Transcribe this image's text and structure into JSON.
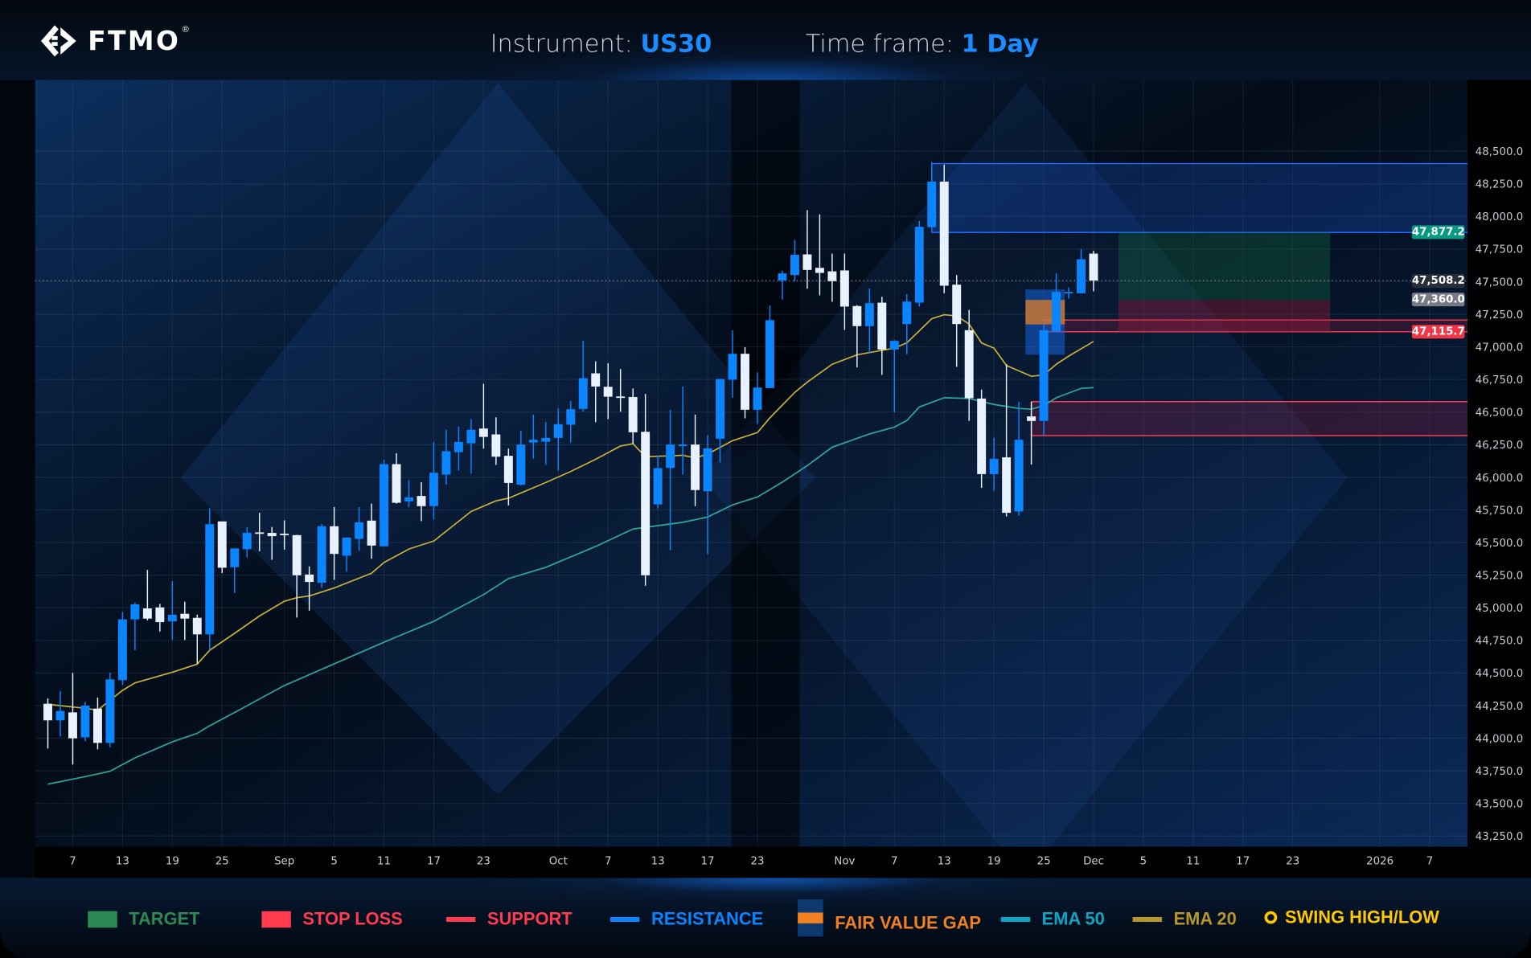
{
  "header": {
    "logo_text": "FTMO",
    "logo_mark": "®",
    "instrument_label": "Instrument:",
    "instrument_value": "US30",
    "timeframe_label": "Time frame:",
    "timeframe_value": "1 Day"
  },
  "colors": {
    "bullish": "#0a84ff",
    "bearish": "#e8f1ff",
    "ema20": "#c9b03a",
    "ema50": "#2fa89a",
    "resistance": "#1f6bff",
    "support": "#ff3b4f",
    "target": "#1f7a46",
    "stop_loss": "#ff3b4f",
    "fvg": "#f08020",
    "swing": "#ffc800"
  },
  "price_labels": {
    "target_price": "47,877.2",
    "last_price": "47,508.2",
    "entry_price": "47,360.0",
    "stop_price": "47,115.7"
  },
  "legend": [
    {
      "label": "TARGET",
      "color": "#2e8a55",
      "icon": "square"
    },
    {
      "label": "STOP LOSS",
      "color": "#ff3b4f",
      "icon": "square"
    },
    {
      "label": "SUPPORT",
      "color": "#ff3b4f",
      "icon": "line"
    },
    {
      "label": "RESISTANCE",
      "color": "#0a84ff",
      "icon": "line"
    },
    {
      "label": "FAIR VALUE GAP",
      "color": "#f08020",
      "icon": "fvg-box"
    },
    {
      "label": "EMA 50",
      "color": "#0ea5c4",
      "icon": "line"
    },
    {
      "label": "EMA 20",
      "color": "#b8962b",
      "icon": "line"
    },
    {
      "label": "SWING HIGH/LOW",
      "color": "#ffc800",
      "icon": "circle"
    }
  ],
  "chart_data": {
    "type": "candlestick",
    "ylim": [
      43125,
      48800
    ],
    "grid": true,
    "y_ticks": [
      "48,500.0",
      "48,250.0",
      "48,000.0",
      "47,750.0",
      "47,500.0",
      "47,250.0",
      "47,000.0",
      "46,750.0",
      "46,500.0",
      "46,250.0",
      "46,000.0",
      "45,750.0",
      "45,500.0",
      "45,250.0",
      "45,000.0",
      "44,750.0",
      "44,500.0",
      "44,250.0",
      "44,000.0",
      "43,750.0",
      "43,500.0",
      "43,250.0"
    ],
    "x_ticks": [
      {
        "label": "7",
        "date": "2025-08-07"
      },
      {
        "label": "13",
        "date": "2025-08-13"
      },
      {
        "label": "19",
        "date": "2025-08-19"
      },
      {
        "label": "25",
        "date": "2025-08-25"
      },
      {
        "label": "Sep",
        "date": "2025-09-01"
      },
      {
        "label": "5",
        "date": "2025-09-05"
      },
      {
        "label": "11",
        "date": "2025-09-11"
      },
      {
        "label": "17",
        "date": "2025-09-17"
      },
      {
        "label": "23",
        "date": "2025-09-23"
      },
      {
        "label": "Oct",
        "date": "2025-10-01"
      },
      {
        "label": "7",
        "date": "2025-10-07"
      },
      {
        "label": "13",
        "date": "2025-10-13"
      },
      {
        "label": "17",
        "date": "2025-10-17"
      },
      {
        "label": "23",
        "date": "2025-10-23"
      },
      {
        "label": "Nov",
        "date": "2025-11-03"
      },
      {
        "label": "7",
        "date": "2025-11-07"
      },
      {
        "label": "13",
        "date": "2025-11-13"
      },
      {
        "label": "19",
        "date": "2025-11-19"
      },
      {
        "label": "25",
        "date": "2025-11-25"
      },
      {
        "label": "Dec",
        "date": "2025-12-01"
      },
      {
        "label": "5",
        "date": "2025-12-05"
      },
      {
        "label": "11",
        "date": "2025-12-11"
      },
      {
        "label": "17",
        "date": "2025-12-17"
      },
      {
        "label": "23",
        "date": "2025-12-23"
      },
      {
        "label": "2026",
        "date": "2026-01-01"
      },
      {
        "label": "7",
        "date": "2026-01-07"
      }
    ],
    "candles_fields": [
      "date",
      "open",
      "high",
      "low",
      "close"
    ],
    "candles": [
      [
        "2025-08-05",
        44264,
        44305,
        43921,
        44137
      ],
      [
        "2025-08-06",
        44137,
        44362,
        44013,
        44209
      ],
      [
        "2025-08-07",
        44198,
        44500,
        43798,
        43999
      ],
      [
        "2025-08-08",
        44007,
        44280,
        43977,
        44250
      ],
      [
        "2025-08-11",
        44227,
        44311,
        43915,
        43964
      ],
      [
        "2025-08-12",
        43964,
        44502,
        43931,
        44451
      ],
      [
        "2025-08-13",
        44445,
        44968,
        44408,
        44911
      ],
      [
        "2025-08-14",
        44911,
        45040,
        44675,
        45026
      ],
      [
        "2025-08-15",
        44995,
        45290,
        44903,
        44917
      ],
      [
        "2025-08-18",
        45003,
        45030,
        44818,
        44890
      ],
      [
        "2025-08-19",
        44896,
        45204,
        44753,
        44946
      ],
      [
        "2025-08-20",
        44954,
        45046,
        44753,
        44917
      ],
      [
        "2025-08-21",
        44923,
        44947,
        44572,
        44796
      ],
      [
        "2025-08-22",
        44796,
        45763,
        44675,
        45641
      ],
      [
        "2025-08-25",
        45662,
        45662,
        45266,
        45307
      ],
      [
        "2025-08-26",
        45311,
        45455,
        45112,
        45455
      ],
      [
        "2025-08-27",
        45449,
        45619,
        45385,
        45574
      ],
      [
        "2025-08-28",
        45578,
        45728,
        45434,
        45570
      ],
      [
        "2025-08-29",
        45574,
        45619,
        45368,
        45549
      ],
      [
        "2025-09-01",
        45568,
        45670,
        45446,
        45562
      ],
      [
        "2025-09-02",
        45557,
        45559,
        44925,
        45249
      ],
      [
        "2025-09-03",
        45255,
        45317,
        44978,
        45198
      ],
      [
        "2025-09-04",
        45192,
        45641,
        45153,
        45625
      ],
      [
        "2025-09-05",
        45625,
        45772,
        45214,
        45413
      ],
      [
        "2025-09-08",
        45399,
        45538,
        45276,
        45538
      ],
      [
        "2025-09-09",
        45528,
        45772,
        45436,
        45655
      ],
      [
        "2025-09-10",
        45668,
        45799,
        45376,
        45477
      ],
      [
        "2025-09-11",
        45471,
        46134,
        45471,
        46101
      ],
      [
        "2025-09-12",
        46101,
        46185,
        45799,
        45805
      ],
      [
        "2025-09-15",
        45816,
        45978,
        45772,
        45846
      ],
      [
        "2025-09-16",
        45857,
        45963,
        45664,
        45779
      ],
      [
        "2025-09-17",
        45779,
        46271,
        45676,
        46035
      ],
      [
        "2025-09-18",
        46021,
        46364,
        45943,
        46200
      ],
      [
        "2025-09-19",
        46193,
        46388,
        46052,
        46271
      ],
      [
        "2025-09-22",
        46261,
        46446,
        46029,
        46364
      ],
      [
        "2025-09-23",
        46374,
        46717,
        46220,
        46310
      ],
      [
        "2025-09-24",
        46329,
        46460,
        46095,
        46158
      ],
      [
        "2025-09-25",
        46165,
        46220,
        45785,
        45957
      ],
      [
        "2025-09-26",
        45943,
        46358,
        45937,
        46251
      ],
      [
        "2025-09-29",
        46267,
        46481,
        46144,
        46288
      ],
      [
        "2025-09-30",
        46273,
        46425,
        46095,
        46302
      ],
      [
        "2025-10-01",
        46302,
        46528,
        46052,
        46407
      ],
      [
        "2025-10-02",
        46403,
        46585,
        46267,
        46522
      ],
      [
        "2025-10-03",
        46524,
        47047,
        46503,
        46760
      ],
      [
        "2025-10-06",
        46797,
        46889,
        46423,
        46696
      ],
      [
        "2025-10-07",
        46694,
        46875,
        46446,
        46618
      ],
      [
        "2025-10-08",
        46620,
        46830,
        46503,
        46612
      ],
      [
        "2025-10-09",
        46616,
        46682,
        46257,
        46345
      ],
      [
        "2025-10-10",
        46349,
        46639,
        45169,
        45249
      ],
      [
        "2025-10-13",
        45793,
        46169,
        45762,
        46070
      ],
      [
        "2025-10-14",
        46072,
        46518,
        45440,
        46251
      ],
      [
        "2025-10-15",
        46245,
        46696,
        46021,
        46251
      ],
      [
        "2025-10-16",
        46251,
        46481,
        45779,
        45902
      ],
      [
        "2025-10-17",
        45894,
        46323,
        45413,
        46222
      ],
      [
        "2025-10-20",
        46296,
        46754,
        46115,
        46754
      ],
      [
        "2025-10-21",
        46748,
        47127,
        46610,
        46947
      ],
      [
        "2025-10-22",
        46947,
        46998,
        46452,
        46518
      ],
      [
        "2025-10-23",
        46518,
        46805,
        46409,
        46688
      ],
      [
        "2025-10-24",
        46684,
        47318,
        46684,
        47205
      ],
      [
        "2025-10-27",
        47509,
        47585,
        47363,
        47563
      ],
      [
        "2025-10-28",
        47550,
        47820,
        47503,
        47706
      ],
      [
        "2025-10-29",
        47709,
        48048,
        47446,
        47590
      ],
      [
        "2025-10-30",
        47606,
        48017,
        47395,
        47567
      ],
      [
        "2025-10-31",
        47579,
        47715,
        47346,
        47504
      ],
      [
        "2025-11-03",
        47586,
        47715,
        47130,
        47309
      ],
      [
        "2025-11-04",
        47313,
        47319,
        46843,
        47159
      ],
      [
        "2025-11-05",
        47159,
        47448,
        46949,
        47335
      ],
      [
        "2025-11-06",
        47339,
        47384,
        46785,
        46980
      ],
      [
        "2025-11-07",
        46980,
        47052,
        46498,
        47046
      ],
      [
        "2025-11-10",
        47175,
        47405,
        46943,
        47347
      ],
      [
        "2025-11-11",
        47339,
        47965,
        47309,
        47920
      ],
      [
        "2025-11-12",
        47918,
        48417,
        47918,
        48267
      ],
      [
        "2025-11-13",
        48267,
        48397,
        47411,
        47469
      ],
      [
        "2025-11-14",
        47477,
        47551,
        46847,
        47175
      ],
      [
        "2025-11-17",
        47128,
        47284,
        46432,
        46607
      ],
      [
        "2025-11-18",
        46604,
        46672,
        45919,
        46025
      ],
      [
        "2025-11-19",
        46025,
        46303,
        45898,
        46142
      ],
      [
        "2025-11-20",
        46153,
        46867,
        45701,
        45728
      ],
      [
        "2025-11-21",
        45738,
        46580,
        45707,
        46288
      ],
      [
        "2025-11-24",
        46467,
        46580,
        46097,
        46432
      ],
      [
        "2025-11-25",
        46432,
        47175,
        46323,
        47128
      ],
      [
        "2025-11-26",
        47118,
        47565,
        47118,
        47421
      ],
      [
        "2025-11-27",
        47417,
        47456,
        47370,
        47421
      ],
      [
        "2025-11-28",
        47411,
        47750,
        47411,
        47672
      ],
      [
        "2025-12-01",
        47715,
        47736,
        47426,
        47508.2
      ]
    ],
    "ema20": [
      [
        "2025-08-05",
        44260
      ],
      [
        "2025-08-08",
        44229
      ],
      [
        "2025-08-11",
        44215
      ],
      [
        "2025-08-13",
        44367
      ],
      [
        "2025-08-14",
        44424
      ],
      [
        "2025-08-19",
        44506
      ],
      [
        "2025-08-21",
        44568
      ],
      [
        "2025-08-22",
        44675
      ],
      [
        "2025-08-26",
        44804
      ],
      [
        "2025-08-28",
        44937
      ],
      [
        "2025-09-01",
        45050
      ],
      [
        "2025-09-02",
        45077
      ],
      [
        "2025-09-03",
        45091
      ],
      [
        "2025-09-05",
        45152
      ],
      [
        "2025-09-10",
        45265
      ],
      [
        "2025-09-11",
        45347
      ],
      [
        "2025-09-15",
        45450
      ],
      [
        "2025-09-17",
        45512
      ],
      [
        "2025-09-22",
        45738
      ],
      [
        "2025-09-24",
        45820
      ],
      [
        "2025-09-25",
        45840
      ],
      [
        "2025-09-30",
        45960
      ],
      [
        "2025-10-02",
        46045
      ],
      [
        "2025-10-06",
        46138
      ],
      [
        "2025-10-08",
        46240
      ],
      [
        "2025-10-09",
        46257
      ],
      [
        "2025-10-10",
        46158
      ],
      [
        "2025-10-15",
        46169
      ],
      [
        "2025-10-16",
        46148
      ],
      [
        "2025-10-17",
        46179
      ],
      [
        "2025-10-21",
        46281
      ],
      [
        "2025-10-23",
        46343
      ],
      [
        "2025-10-24",
        46456
      ],
      [
        "2025-10-28",
        46651
      ],
      [
        "2025-10-29",
        46730
      ],
      [
        "2025-10-31",
        46867
      ],
      [
        "2025-11-04",
        46939
      ],
      [
        "2025-11-07",
        46990
      ],
      [
        "2025-11-10",
        47031
      ],
      [
        "2025-11-12",
        47216
      ],
      [
        "2025-11-13",
        47247
      ],
      [
        "2025-11-14",
        47237
      ],
      [
        "2025-11-17",
        47175
      ],
      [
        "2025-11-18",
        47030
      ],
      [
        "2025-11-19",
        46990
      ],
      [
        "2025-11-20",
        46857
      ],
      [
        "2025-11-24",
        46775
      ],
      [
        "2025-11-25",
        46785
      ],
      [
        "2025-11-26",
        46867
      ],
      [
        "2025-11-27",
        46929
      ],
      [
        "2025-12-01",
        47042
      ]
    ],
    "ema50": [
      [
        "2025-08-05",
        43648
      ],
      [
        "2025-08-08",
        43706
      ],
      [
        "2025-08-12",
        43747
      ],
      [
        "2025-08-14",
        43849
      ],
      [
        "2025-08-19",
        43972
      ],
      [
        "2025-08-21",
        44038
      ],
      [
        "2025-08-22",
        44096
      ],
      [
        "2025-08-26",
        44198
      ],
      [
        "2025-08-28",
        44301
      ],
      [
        "2025-09-01",
        44404
      ],
      [
        "2025-09-02",
        44445
      ],
      [
        "2025-09-11",
        44736
      ],
      [
        "2025-09-17",
        44896
      ],
      [
        "2025-09-23",
        45101
      ],
      [
        "2025-09-25",
        45224
      ],
      [
        "2025-09-30",
        45310
      ],
      [
        "2025-10-06",
        45470
      ],
      [
        "2025-10-09",
        45604
      ],
      [
        "2025-10-15",
        45655
      ],
      [
        "2025-10-17",
        45696
      ],
      [
        "2025-10-21",
        45789
      ],
      [
        "2025-10-23",
        45850
      ],
      [
        "2025-10-27",
        45963
      ],
      [
        "2025-10-29",
        46090
      ],
      [
        "2025-10-31",
        46231
      ],
      [
        "2025-11-05",
        46333
      ],
      [
        "2025-11-07",
        46385
      ],
      [
        "2025-11-10",
        46436
      ],
      [
        "2025-11-11",
        46539
      ],
      [
        "2025-11-13",
        46610
      ],
      [
        "2025-11-17",
        46604
      ],
      [
        "2025-11-19",
        46559
      ],
      [
        "2025-11-21",
        46528
      ],
      [
        "2025-11-24",
        46522
      ],
      [
        "2025-11-25",
        46550
      ],
      [
        "2025-11-26",
        46610
      ],
      [
        "2025-11-28",
        46682
      ],
      [
        "2025-12-01",
        46688
      ]
    ],
    "zones": {
      "resistance": {
        "from": "2025-11-12",
        "top": 48405,
        "bottom": 47877.2,
        "extend_right": true
      },
      "support_upper": {
        "from": "2025-11-25",
        "top": 47206,
        "bottom": 47115.7,
        "extend_right": true
      },
      "support_lower": {
        "from": "2025-11-24",
        "top": 46580,
        "bottom": 46320,
        "extend_right": true
      },
      "target": {
        "from": "2025-12-03",
        "to": "2025-12-26",
        "top": 47877.2,
        "bottom": 47360
      },
      "stop_loss": {
        "from": "2025-12-03",
        "to": "2025-12-26",
        "top": 47360,
        "bottom": 47115.7
      },
      "fair_value_gap": {
        "from": "2025-11-24",
        "to": "2025-11-27",
        "top": 47440,
        "bottom": 46940,
        "gap_top": 47360,
        "gap_bottom": 47172
      }
    },
    "last_price": 47508.2
  }
}
